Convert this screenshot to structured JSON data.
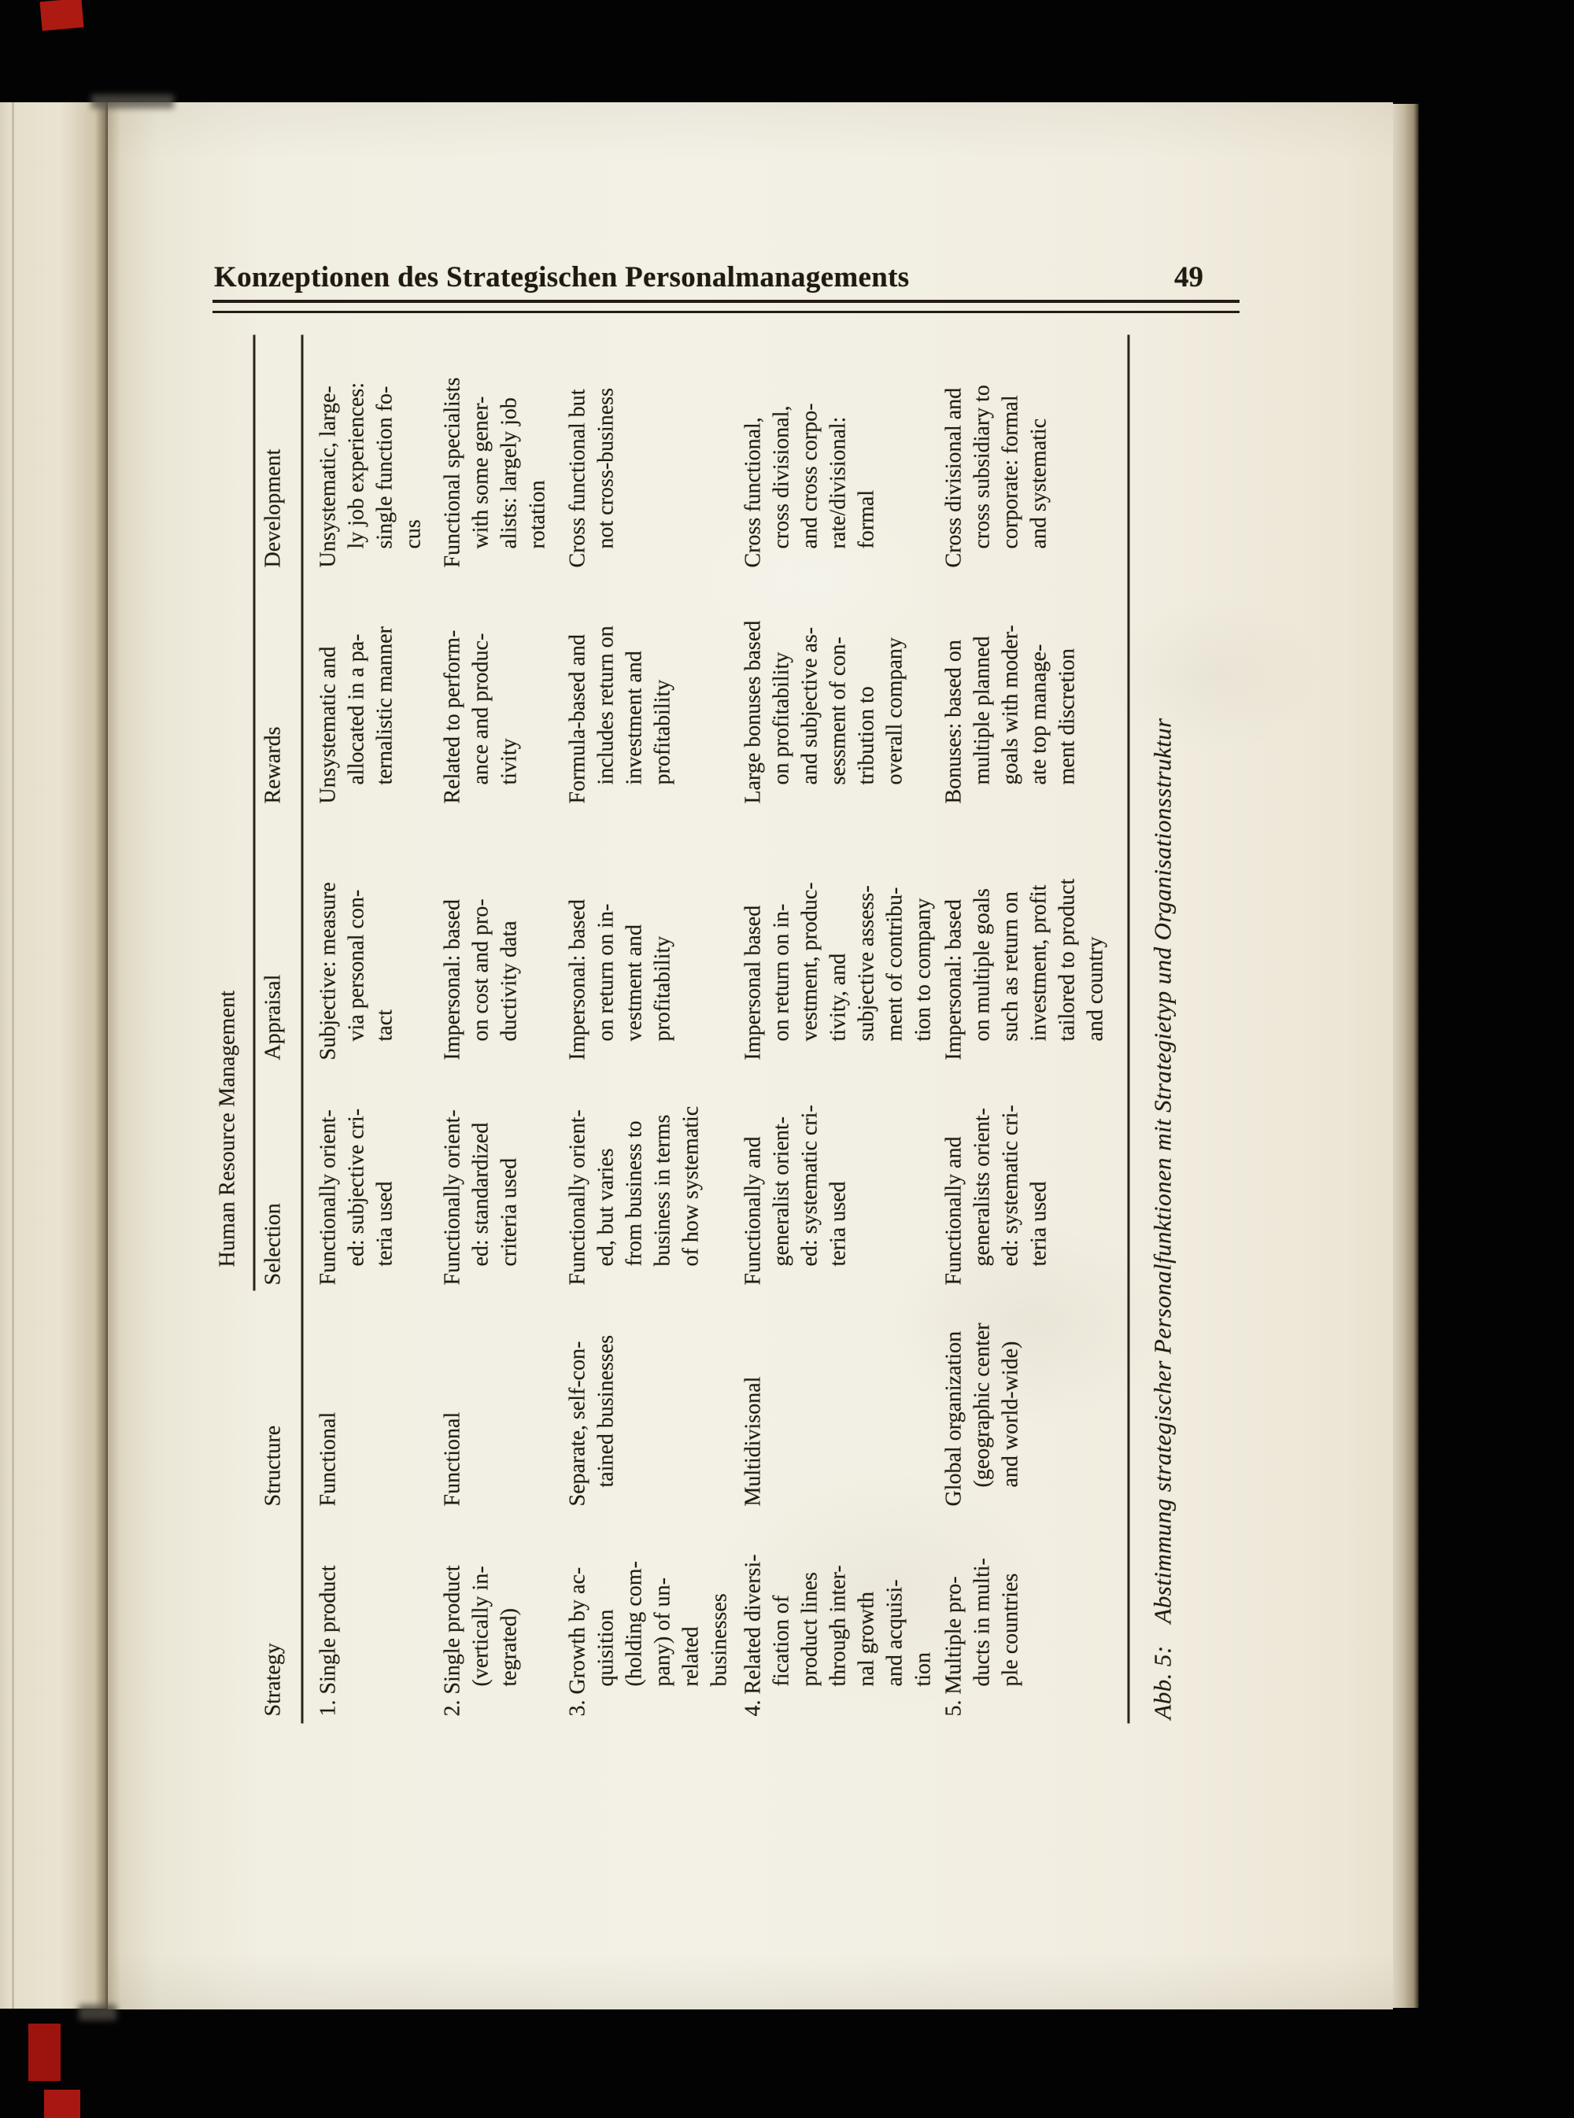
{
  "header": {
    "title": "Konzeptionen des Strategischen Personalmanagements",
    "page_number": "49"
  },
  "table": {
    "spanner": "Human Resource Management",
    "columns": [
      "Strategy",
      "Structure",
      "Selection",
      "Appraisal",
      "Rewards",
      "Development"
    ],
    "rows": [
      {
        "strategy": [
          "1. Single product"
        ],
        "structure": [
          "Functional"
        ],
        "selection": [
          "Functionally orient-",
          "ed: subjective cri-",
          "teria used"
        ],
        "appraisal": [
          "Subjective: measure",
          "via personal con-",
          "tact"
        ],
        "rewards": [
          "Unsystematic and",
          "allocated in a pa-",
          "ternalistic manner"
        ],
        "development": [
          "Unsystematic, large-",
          "ly job experiences:",
          "single function fo-",
          "cus"
        ]
      },
      {
        "strategy": [
          "2. Single product",
          "(vertically in-",
          "tegrated)"
        ],
        "structure": [
          "Functional"
        ],
        "selection": [
          "Functionally orient-",
          "ed: standardized",
          "criteria used"
        ],
        "appraisal": [
          "Impersonal: based",
          "on cost and pro-",
          "ductivity data"
        ],
        "rewards": [
          "Related to perform-",
          "ance and produc-",
          "tivity"
        ],
        "development": [
          "Functional specialists",
          "with some gener-",
          "alists: largely job",
          "rotation"
        ]
      },
      {
        "strategy": [
          "3. Growth by ac-",
          "quisition",
          "(holding com-",
          "pany) of un-",
          "related",
          "businesses"
        ],
        "structure": [
          "Separate, self-con-",
          "tained businesses"
        ],
        "selection": [
          "Functionally orient-",
          "ed, but varies",
          "from business to",
          "business in terms",
          "of how systematic"
        ],
        "appraisal": [
          "Impersonal: based",
          "on return on in-",
          "vestment and",
          "profitability"
        ],
        "rewards": [
          "Formula-based and",
          "includes return on",
          "investment and",
          "profitability"
        ],
        "development": [
          "Cross functional but",
          "not cross-business"
        ]
      },
      {
        "strategy": [
          "4. Related diversi-",
          "fication of",
          "product lines",
          "through inter-",
          "nal growth",
          "and acquisi-",
          "tion"
        ],
        "structure": [
          "Multidivisonal"
        ],
        "selection": [
          "Functionally and",
          "generalist orient-",
          "ed: systematic cri-",
          "teria used"
        ],
        "appraisal": [
          "Impersonal based",
          "on return on in-",
          "vestment, produc-",
          "tivity, and",
          "subjective assess-",
          "ment of contribu-",
          "tion to company"
        ],
        "rewards": [
          "Large bonuses based",
          "on profitability",
          "and subjective as-",
          "sessment of con-",
          "tribution to",
          "overall company"
        ],
        "development": [
          "Cross functional,",
          "cross divisional,",
          "and cross corpo-",
          "rate/divisional:",
          "formal"
        ]
      },
      {
        "strategy": [
          "5. Multiple pro-",
          "ducts in multi-",
          "ple countries"
        ],
        "structure": [
          "Global organization",
          "(geographic center",
          "and world-wide)"
        ],
        "selection": [
          "Functionally and",
          "generalists orient-",
          "ed: systematic cri-",
          "teria used"
        ],
        "appraisal": [
          "Impersonal: based",
          "on multiple goals",
          "such as return on",
          "investment, profit",
          "tailored to product",
          "and country"
        ],
        "rewards": [
          "Bonuses: based on",
          "multiple planned",
          "goals with moder-",
          "ate top manage-",
          "ment discretion"
        ],
        "development": [
          "Cross divisional and",
          "cross subsidiary to",
          "corporate: formal",
          "and systematic"
        ]
      }
    ],
    "caption": {
      "label": "Abb. 5:",
      "text": "Abstimmung strategischer Personalfunktionen mit Strategietyp und Organisationsstruktur"
    }
  }
}
